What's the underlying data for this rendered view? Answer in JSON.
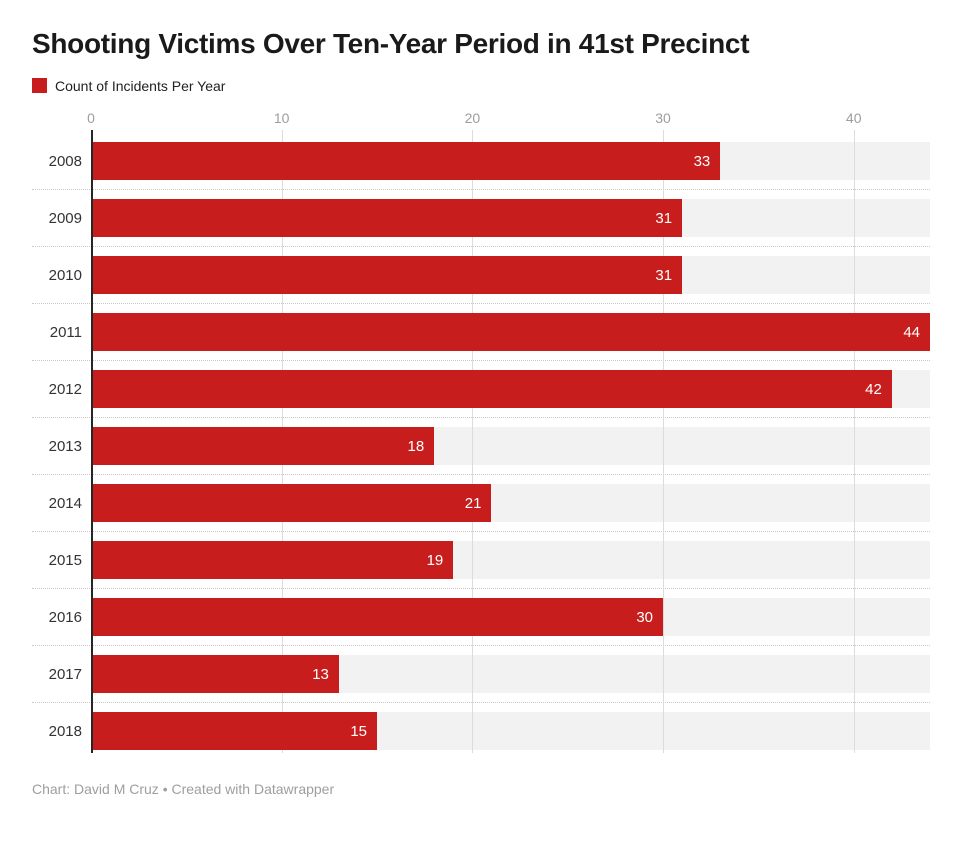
{
  "header": {
    "title": "Shooting Victims Over Ten-Year Period in 41st Precinct"
  },
  "legend": {
    "label": "Count of Incidents Per Year",
    "swatch_color": "#c71e1d"
  },
  "footer": {
    "text": "Chart: David M Cruz • Created with Datawrapper"
  },
  "chart_data": {
    "type": "bar",
    "orientation": "horizontal",
    "title": "Shooting Victims Over Ten-Year Period in 41st Precinct",
    "series_name": "Count of Incidents Per Year",
    "categories": [
      "2008",
      "2009",
      "2010",
      "2011",
      "2012",
      "2013",
      "2014",
      "2015",
      "2016",
      "2017",
      "2018"
    ],
    "values": [
      33,
      31,
      31,
      44,
      42,
      18,
      21,
      19,
      30,
      13,
      15
    ],
    "x_ticks": [
      0,
      10,
      20,
      30,
      40
    ],
    "xlim": [
      0,
      44
    ],
    "xlabel": "",
    "ylabel": "",
    "grid": true,
    "value_labels_inside_bars": true,
    "legend_position": "top-left",
    "colors": {
      "bar": "#c71e1d",
      "track": "#f2f2f2",
      "gridline": "#dcdcdc",
      "axis_line": "#262626",
      "tick_label": "#9d9d9d",
      "category_label": "#333333",
      "value_label": "#ffffff",
      "separator": "#c9c9c9",
      "title": "#1a1a1a",
      "footer": "#9e9e9e",
      "background": "#ffffff"
    }
  }
}
